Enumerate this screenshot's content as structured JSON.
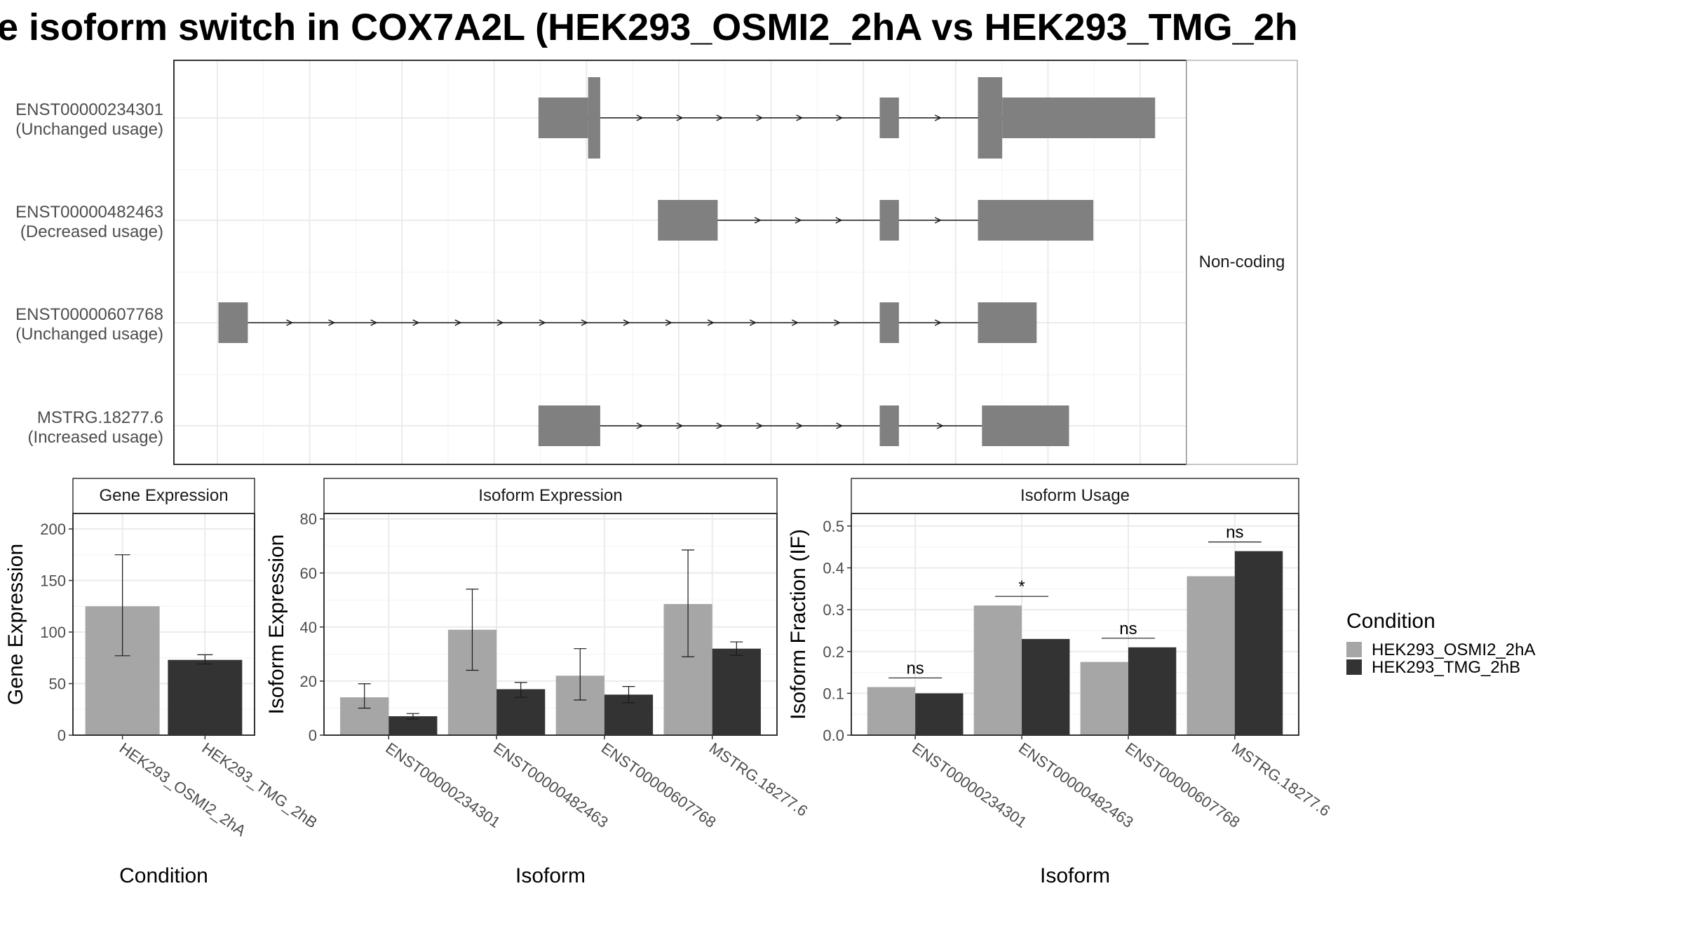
{
  "title": "e isoform switch in COX7A2L (HEK293_OSMI2_2hA vs HEK293_TMG_2h",
  "colors": {
    "condA": "#a6a6a6",
    "condB": "#333333",
    "exon": "#808080",
    "grid": "#ebebeb",
    "panel_border": "#333333"
  },
  "structure": {
    "strip_label": "Non-coding",
    "isoforms": [
      {
        "id": "ENST00000234301",
        "status": "(Unchanged usage)",
        "exons": [
          [
            0.36,
            0.409
          ],
          [
            0.409,
            0.421
          ],
          [
            0.697,
            0.716
          ],
          [
            0.794,
            0.818
          ],
          [
            0.818,
            0.969
          ]
        ],
        "tall": [
          1,
          3
        ],
        "cds_like": [
          0,
          4
        ]
      },
      {
        "id": "ENST00000482463",
        "status": "(Decreased usage)",
        "exons": [
          [
            0.478,
            0.537
          ],
          [
            0.697,
            0.716
          ],
          [
            0.794,
            0.908
          ]
        ]
      },
      {
        "id": "ENST00000607768",
        "status": "(Unchanged usage)",
        "exons": [
          [
            0.044,
            0.073
          ],
          [
            0.697,
            0.716
          ],
          [
            0.794,
            0.852
          ]
        ]
      },
      {
        "id": "MSTRG.18277.6",
        "status": "(Increased usage)",
        "exons": [
          [
            0.36,
            0.421
          ],
          [
            0.697,
            0.716
          ],
          [
            0.798,
            0.884
          ]
        ]
      }
    ]
  },
  "chart_data": [
    {
      "type": "bar",
      "title": "Gene Expression",
      "xlabel": "Condition",
      "ylabel": "Gene Expression",
      "categories": [
        "HEK293_OSMI2_2hA",
        "HEK293_TMG_2hB"
      ],
      "values": [
        125,
        73
      ],
      "error_low": [
        77,
        69
      ],
      "error_high": [
        175,
        78
      ],
      "ylim": [
        0,
        215
      ],
      "yticks": [
        0,
        50,
        100,
        150,
        200
      ]
    },
    {
      "type": "bar",
      "title": "Isoform Expression",
      "xlabel": "Isoform",
      "ylabel": "Isoform Expression",
      "categories": [
        "ENST00000234301",
        "ENST00000482463",
        "ENST00000607768",
        "MSTRG.18277.6"
      ],
      "series": [
        {
          "name": "HEK293_OSMI2_2hA",
          "values": [
            14,
            39,
            22,
            48.5
          ],
          "error_low": [
            10,
            24,
            13,
            29
          ],
          "error_high": [
            19,
            54,
            32,
            68.5
          ]
        },
        {
          "name": "HEK293_TMG_2hB",
          "values": [
            7,
            17,
            15,
            32
          ],
          "error_low": [
            6,
            14,
            12,
            29.5
          ],
          "error_high": [
            8,
            19.5,
            18,
            34.5
          ]
        }
      ],
      "ylim": [
        0,
        82
      ],
      "yticks": [
        0,
        20,
        40,
        60,
        80
      ]
    },
    {
      "type": "bar",
      "title": "Isoform Usage",
      "xlabel": "Isoform",
      "ylabel": "Isoform Fraction (IF)",
      "categories": [
        "ENST00000234301",
        "ENST00000482463",
        "ENST00000607768",
        "MSTRG.18277.6"
      ],
      "series": [
        {
          "name": "HEK293_OSMI2_2hA",
          "values": [
            0.115,
            0.31,
            0.175,
            0.38
          ]
        },
        {
          "name": "HEK293_TMG_2hB",
          "values": [
            0.1,
            0.23,
            0.21,
            0.44
          ]
        }
      ],
      "significance": [
        "ns",
        "*",
        "ns",
        "ns"
      ],
      "ylim": [
        0,
        0.53
      ],
      "yticks": [
        0.0,
        0.1,
        0.2,
        0.3,
        0.4,
        0.5
      ],
      "ytick_labels": [
        "0.0",
        "0.1",
        "0.2",
        "0.3",
        "0.4",
        "0.5"
      ]
    }
  ],
  "legend": {
    "title": "Condition",
    "items": [
      {
        "label": "HEK293_OSMI2_2hA",
        "color": "#a6a6a6"
      },
      {
        "label": "HEK293_TMG_2hB",
        "color": "#333333"
      }
    ]
  }
}
